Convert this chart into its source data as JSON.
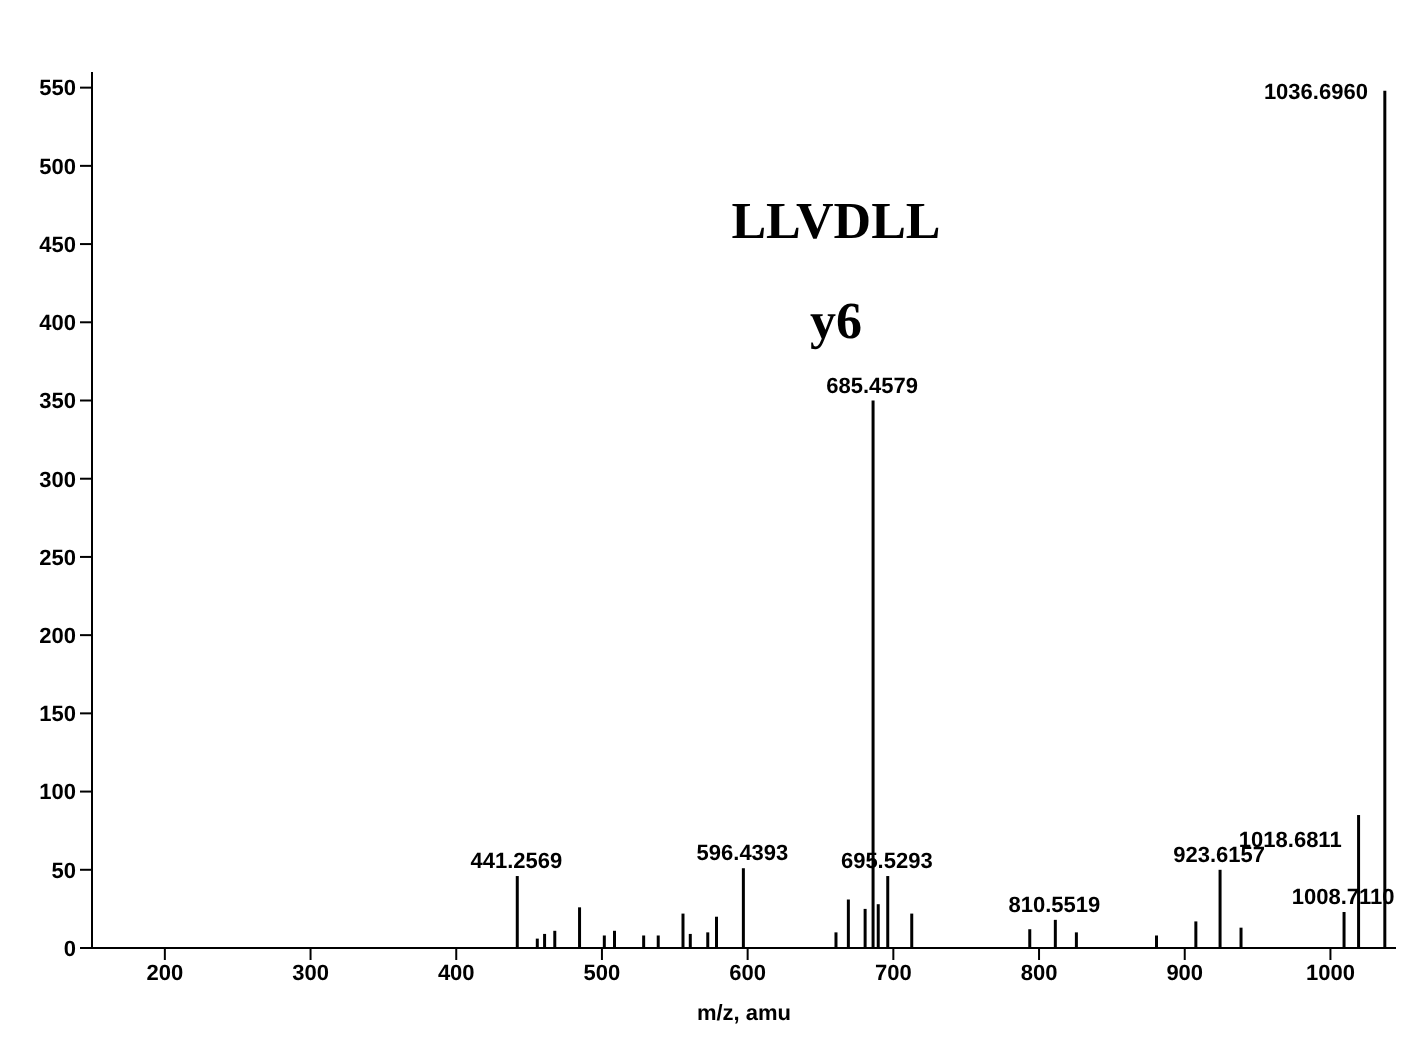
{
  "chart_data": {
    "type": "bar",
    "xlabel": "m/z, amu",
    "x": [
      441.2569,
      455,
      460,
      467,
      484,
      501,
      508,
      528,
      538,
      555,
      560,
      572,
      578,
      596.4393,
      660,
      668.5,
      680,
      685.4579,
      689,
      695.5293,
      712,
      793,
      810.5519,
      825,
      880,
      907,
      923.6157,
      938,
      1008.711,
      1018.6811,
      1036.696
    ],
    "values": [
      46,
      6,
      9,
      11,
      26,
      8,
      11,
      8,
      8,
      22,
      9,
      10,
      20,
      51,
      10,
      31,
      25,
      350,
      28,
      46,
      22,
      12,
      18,
      10,
      8,
      17,
      50,
      13,
      23,
      85,
      548
    ],
    "color": "#000000",
    "xlim": [
      150,
      1045
    ],
    "xticks": [
      200,
      300,
      400,
      500,
      600,
      700,
      800,
      900,
      1000
    ],
    "ylim": [
      0,
      560
    ],
    "yticks": [
      0,
      50,
      100,
      150,
      200,
      250,
      300,
      350,
      400,
      450,
      500,
      550
    ],
    "grid": false,
    "annotations": [
      "LLVDLL",
      "y6",
      {
        "text": "441.2569",
        "x": 441.2569,
        "y": 46
      },
      {
        "text": "596.4393",
        "x": 596.4393,
        "y": 51
      },
      {
        "text": "685.4579",
        "x": 685.4579,
        "y": 350
      },
      {
        "text": "695.5293",
        "x": 695.5293,
        "y": 46
      },
      {
        "text": "810.5519",
        "x": 810.5519,
        "y": 18
      },
      {
        "text": "923.6157",
        "x": 923.6157,
        "y": 50
      },
      {
        "text": "1008.7110",
        "x": 1008.711,
        "y": 23
      },
      {
        "text": "1018.6811",
        "x": 1018.6811,
        "y": 85
      },
      {
        "text": "1036.6960",
        "x": 1036.696,
        "y": 548
      }
    ]
  }
}
